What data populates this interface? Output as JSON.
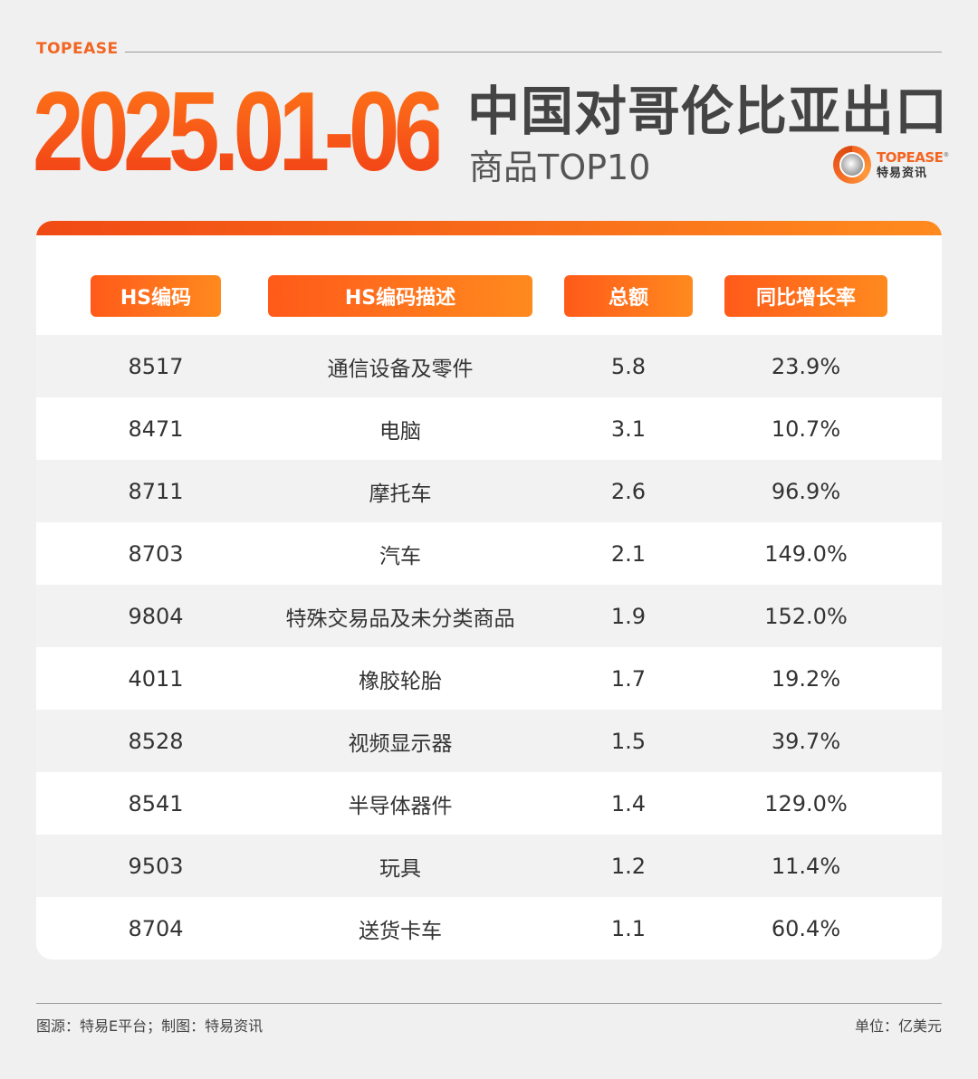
{
  "brand_top": "TOPEASE",
  "header": {
    "date_range": "2025.01-06",
    "title": "中国对哥伦比亚出口",
    "subtitle": "商品TOP10"
  },
  "logo": {
    "en": "TOPEASE",
    "registered": "®",
    "cn": "特易资讯",
    "accent": "#f26522"
  },
  "table": {
    "columns": [
      "HS编码",
      "HS编码描述",
      "总额",
      "同比增长率"
    ]
  },
  "chart_data": {
    "type": "table",
    "title": "中国对哥伦比亚出口商品TOP10",
    "columns": [
      "HS编码",
      "HS编码描述",
      "总额",
      "同比增长率"
    ],
    "rows": [
      {
        "code": "8517",
        "desc": "通信设备及零件",
        "total": "5.8",
        "rate": "23.9%"
      },
      {
        "code": "8471",
        "desc": "电脑",
        "total": "3.1",
        "rate": "10.7%"
      },
      {
        "code": "8711",
        "desc": "摩托车",
        "total": "2.6",
        "rate": "96.9%"
      },
      {
        "code": "8703",
        "desc": "汽车",
        "total": "2.1",
        "rate": "149.0%"
      },
      {
        "code": "9804",
        "desc": "特殊交易品及未分类商品",
        "total": "1.9",
        "rate": "152.0%"
      },
      {
        "code": "4011",
        "desc": "橡胶轮胎",
        "total": "1.7",
        "rate": "19.2%"
      },
      {
        "code": "8528",
        "desc": "视频显示器",
        "total": "1.5",
        "rate": "39.7%"
      },
      {
        "code": "8541",
        "desc": "半导体器件",
        "total": "1.4",
        "rate": "129.0%"
      },
      {
        "code": "9503",
        "desc": "玩具",
        "total": "1.2",
        "rate": "11.4%"
      },
      {
        "code": "8704",
        "desc": "送货卡车",
        "total": "1.1",
        "rate": "60.4%"
      }
    ]
  },
  "footer": {
    "source": "图源：特易E平台；制图：特易资讯",
    "unit": "单位：亿美元"
  },
  "colors": {
    "accent_start": "#f04a14",
    "accent_end": "#ff8a1e",
    "row_stripe": "#f2f2f2"
  }
}
